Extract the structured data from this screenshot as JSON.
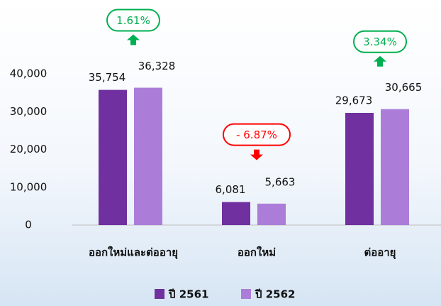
{
  "chart_data": {
    "type": "bar",
    "categories": [
      "ออกใหม่และต่ออายุ",
      "ออกใหม่",
      "ต่ออายุ"
    ],
    "series": [
      {
        "name": "ปี 2561",
        "color": "#7030a0",
        "values": [
          35754,
          6081,
          29673
        ],
        "value_labels": [
          "35,754",
          "6,081",
          "29,673"
        ]
      },
      {
        "name": "ปี 2562",
        "color": "#ab7dd9",
        "values": [
          36328,
          5663,
          30665
        ],
        "value_labels": [
          "36,328",
          "5,663",
          "30,665"
        ]
      }
    ],
    "ylim": [
      0,
      40000
    ],
    "yticks": [
      0,
      {
        "value": 10000,
        "label": "10,000"
      },
      {
        "value": 20000,
        "label": "20,000"
      },
      {
        "value": 30000,
        "label": "30,000"
      },
      {
        "value": 40000,
        "label": "40,000"
      }
    ],
    "grid": false,
    "legend": "bottom",
    "annotations": [
      {
        "text": "1.61%",
        "color": "#00b050",
        "direction": "up"
      },
      {
        "text": "- 6.87%",
        "color": "#ff0000",
        "direction": "down"
      },
      {
        "text": "3.34%",
        "color": "#00b050",
        "direction": "up"
      }
    ]
  }
}
